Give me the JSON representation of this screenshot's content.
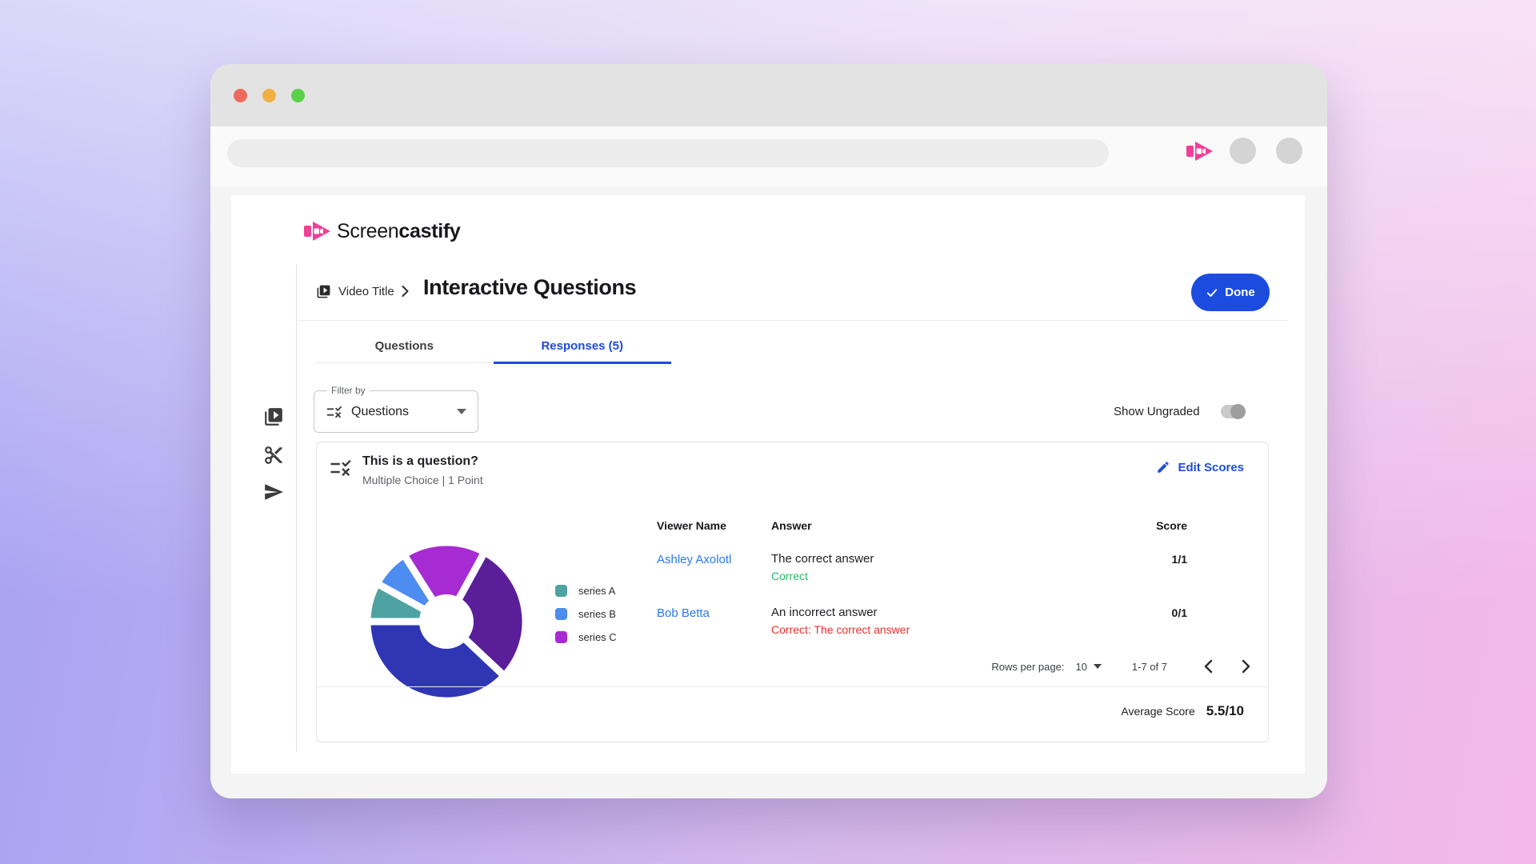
{
  "colors": {
    "accent_blue": "#1c4bdf",
    "link_blue": "#2979f2",
    "brand_pink": "#f23e96",
    "correct_green": "#27b96a",
    "incorrect_red": "#e8312e"
  },
  "titlebar_lights": {
    "close": "#ee6a5f",
    "minimize": "#f1b046",
    "zoom": "#59d148"
  },
  "logo": {
    "regular": "Screen",
    "bold": "castify"
  },
  "breadcrumb": {
    "label": "Video Title"
  },
  "header": {
    "title": "Interactive Questions",
    "done": "Done"
  },
  "tabs": {
    "questions": "Questions",
    "responses": "Responses (5)"
  },
  "filter": {
    "label": "Filter by",
    "value": "Questions"
  },
  "controls": {
    "show_ungraded": "Show Ungraded"
  },
  "card": {
    "question": "This is a question?",
    "meta": "Multiple Choice | 1 Point",
    "edit_scores": "Edit Scores",
    "columns": {
      "viewer": "Viewer Name",
      "answer": "Answer",
      "score": "Score"
    },
    "rows": [
      {
        "viewer": "Ashley Axolotl",
        "answer": "The correct answer",
        "note": "Correct",
        "note_color": "#27b96a",
        "score": "1/1"
      },
      {
        "viewer": "Bob Betta",
        "answer": "An incorrect answer",
        "note": "Correct: The correct answer",
        "note_color": "#e8312e",
        "score": "0/1"
      }
    ],
    "pagination": {
      "label": "Rows per page:",
      "value": "10",
      "range": "1-7 of 7"
    },
    "average": {
      "label": "Average Score",
      "value": "5.5/10"
    }
  },
  "chart_data": {
    "type": "pie",
    "donut": true,
    "legend_position": "right",
    "start_angle_deg": 270,
    "slices": [
      {
        "label": "series A",
        "value": 8,
        "color": "#4ea3a2"
      },
      {
        "label": "series B",
        "value": 8,
        "color": "#4d8cf0"
      },
      {
        "label": "series C",
        "value": 17,
        "color": "#a62bd3"
      },
      {
        "label": "",
        "value": 29,
        "color": "#5a1e99"
      },
      {
        "label": "",
        "value": 38,
        "color": "#2f36b4"
      }
    ],
    "legend": [
      {
        "label": "series A",
        "color": "#4ea3a2"
      },
      {
        "label": "series B",
        "color": "#4d8cf0"
      },
      {
        "label": "series C",
        "color": "#a62bd3"
      }
    ]
  }
}
